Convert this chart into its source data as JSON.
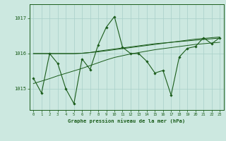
{
  "xlabel_label": "Graphe pression niveau de la mer (hPa)",
  "x_hours": [
    0,
    1,
    2,
    3,
    4,
    5,
    6,
    7,
    8,
    9,
    10,
    11,
    12,
    13,
    14,
    15,
    16,
    17,
    18,
    19,
    20,
    21,
    22,
    23
  ],
  "y_main": [
    1015.3,
    1014.88,
    1016.0,
    1015.72,
    1015.0,
    1014.58,
    1015.85,
    1015.55,
    1016.25,
    1016.75,
    1017.05,
    1016.18,
    1016.0,
    1016.0,
    1015.78,
    1015.45,
    1015.52,
    1014.82,
    1015.9,
    1016.15,
    1016.2,
    1016.45,
    1016.28,
    1016.45
  ],
  "y_smooth1": [
    1016.0,
    1016.0,
    1016.0,
    1016.0,
    1016.0,
    1016.0,
    1016.01,
    1016.03,
    1016.05,
    1016.08,
    1016.11,
    1016.14,
    1016.17,
    1016.2,
    1016.23,
    1016.26,
    1016.29,
    1016.32,
    1016.35,
    1016.38,
    1016.41,
    1016.43,
    1016.45,
    1016.47
  ],
  "y_smooth2": [
    1015.15,
    1015.22,
    1015.29,
    1015.37,
    1015.44,
    1015.51,
    1015.58,
    1015.66,
    1015.74,
    1015.82,
    1015.89,
    1015.94,
    1015.99,
    1016.03,
    1016.07,
    1016.11,
    1016.14,
    1016.17,
    1016.2,
    1016.23,
    1016.26,
    1016.28,
    1016.3,
    1016.32
  ],
  "y_smooth3": [
    1016.0,
    1016.0,
    1016.0,
    1016.0,
    1016.0,
    1016.0,
    1016.01,
    1016.03,
    1016.07,
    1016.1,
    1016.13,
    1016.16,
    1016.19,
    1016.22,
    1016.25,
    1016.28,
    1016.3,
    1016.32,
    1016.34,
    1016.36,
    1016.38,
    1016.4,
    1016.42,
    1016.44
  ],
  "line_color": "#1a5c1a",
  "bg_color": "#cce8e0",
  "grid_color": "#a8cfc8",
  "yticks": [
    1015,
    1016,
    1017
  ],
  "ylim": [
    1014.4,
    1017.4
  ],
  "xlim": [
    -0.5,
    23.5
  ]
}
